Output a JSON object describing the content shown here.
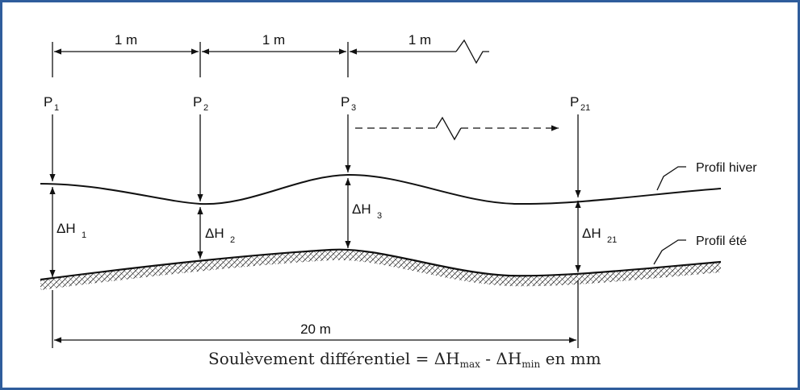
{
  "spacing": {
    "s1": "1 m",
    "s2": "1 m",
    "s3": "1 m",
    "total": "20 m"
  },
  "points": [
    {
      "base": "P",
      "sub": "1"
    },
    {
      "base": "P",
      "sub": "2"
    },
    {
      "base": "P",
      "sub": "3"
    },
    {
      "base": "P",
      "sub": "21"
    }
  ],
  "deltas": [
    {
      "base": "ΔH",
      "sub": "1"
    },
    {
      "base": "ΔH",
      "sub": "2"
    },
    {
      "base": "ΔH",
      "sub": "3"
    },
    {
      "base": "ΔH",
      "sub": "21"
    }
  ],
  "profiles": {
    "winter": "Profil hiver",
    "summer": "Profil été"
  },
  "formula": {
    "prefix": "Soulèvement différentiel = ΔH",
    "sub_max": "max",
    "middle": " - ΔH",
    "sub_min": "min",
    "suffix": " en mm"
  },
  "colors": {
    "frame": "#2f5d9c",
    "ink": "#111111"
  }
}
